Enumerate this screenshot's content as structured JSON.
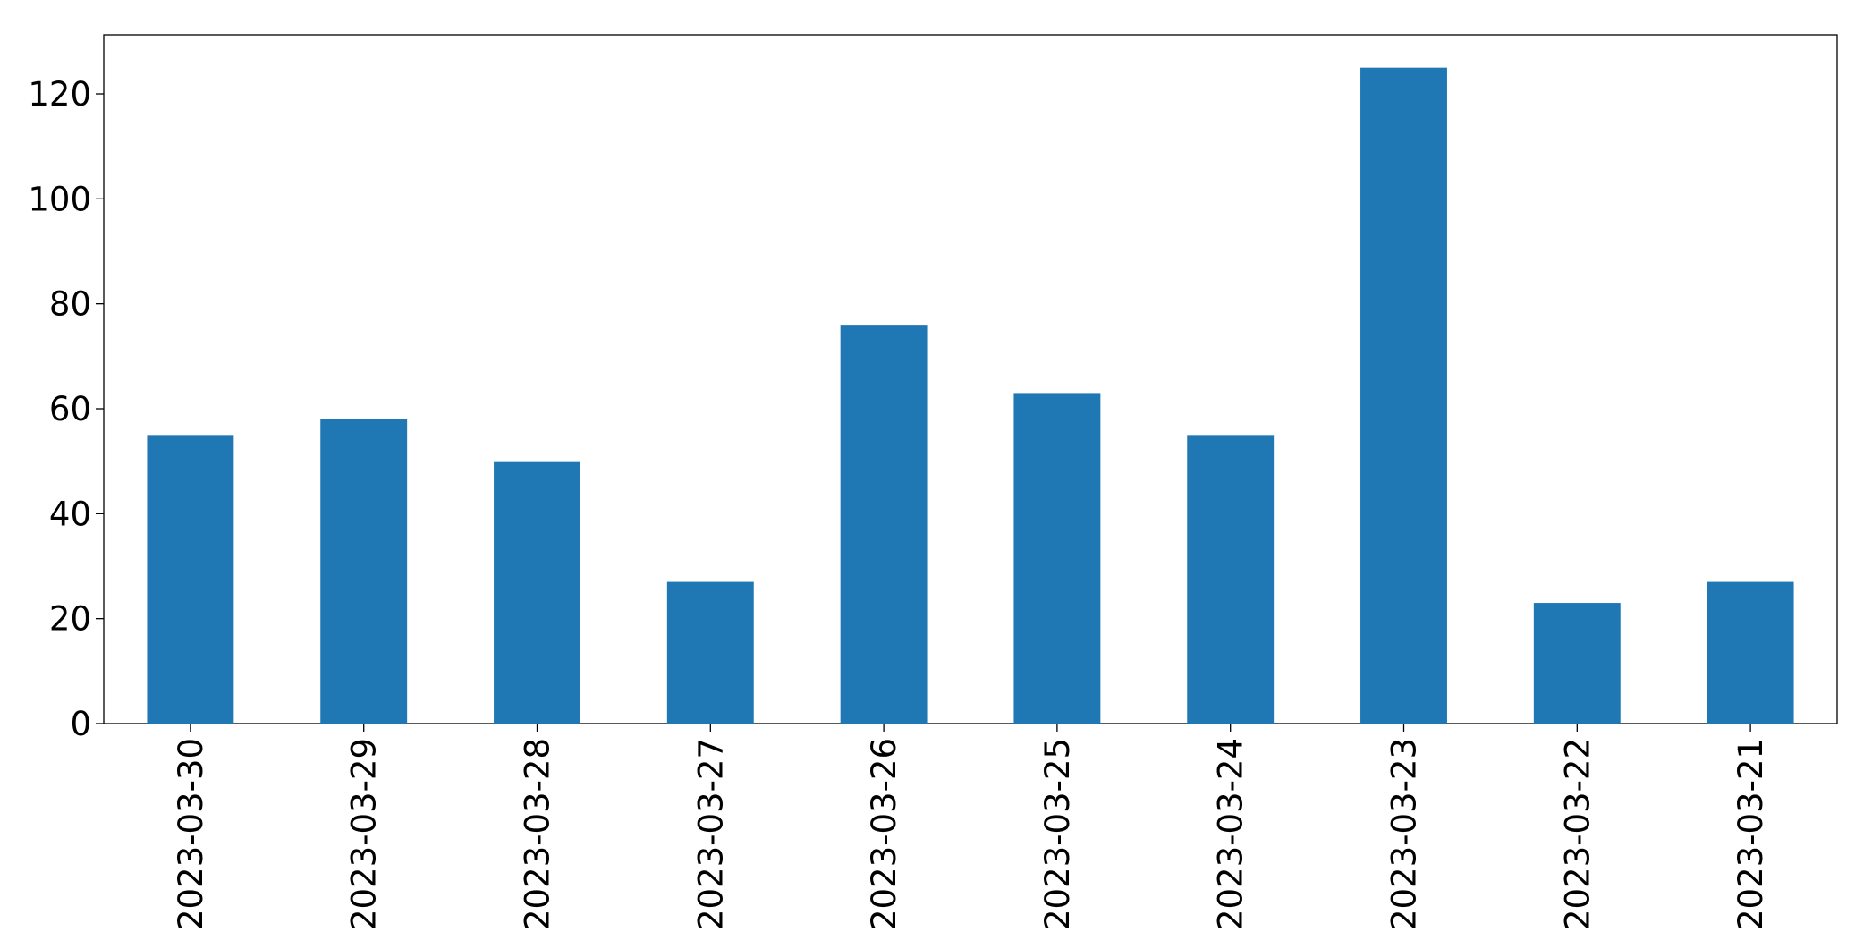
{
  "chart_data": {
    "type": "bar",
    "categories": [
      "2023-03-30",
      "2023-03-29",
      "2023-03-28",
      "2023-03-27",
      "2023-03-26",
      "2023-03-25",
      "2023-03-24",
      "2023-03-23",
      "2023-03-22",
      "2023-03-21"
    ],
    "values": [
      55,
      58,
      50,
      27,
      76,
      63,
      55,
      125,
      23,
      27
    ],
    "color": "#1f77b4",
    "ylim": [
      0,
      131.25
    ],
    "yticks": [
      0,
      20,
      40,
      60,
      80,
      100,
      120
    ],
    "grid": false
  }
}
